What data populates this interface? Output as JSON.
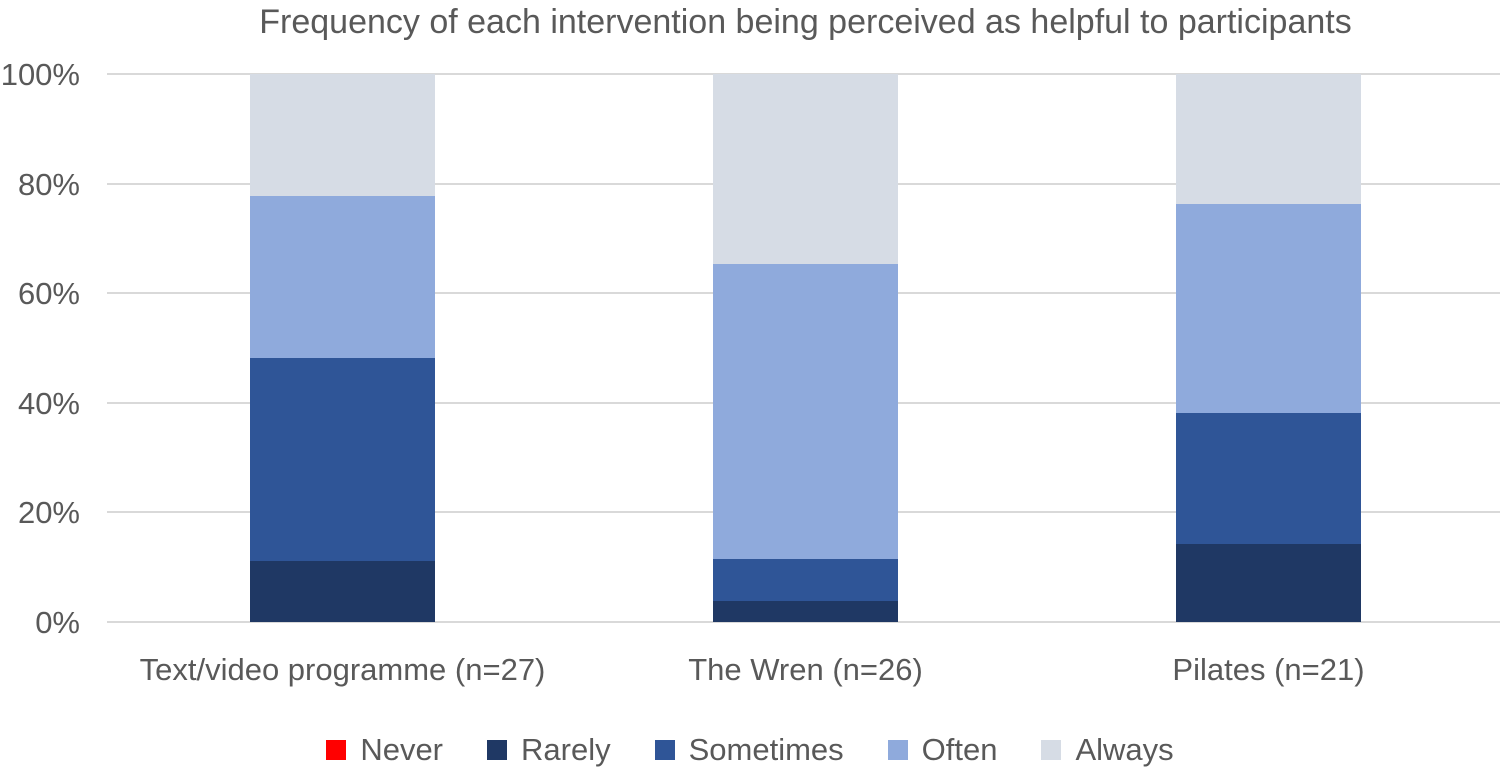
{
  "chart_data": {
    "type": "bar",
    "stacked": true,
    "percent_stacked": true,
    "title": "Frequency of each intervention being perceived as helpful to participants",
    "categories": [
      "Text/video programme (n=27)",
      "The Wren (n=26)",
      "Pilates (n=21)"
    ],
    "series": [
      {
        "name": "Never",
        "color": "#FF0000",
        "values": [
          0,
          0,
          0
        ]
      },
      {
        "name": "Rarely",
        "color": "#1F3864",
        "values": [
          11.1,
          3.8,
          14.3
        ]
      },
      {
        "name": "Sometimes",
        "color": "#2F5597",
        "values": [
          37.0,
          7.7,
          23.8
        ]
      },
      {
        "name": "Often",
        "color": "#8FAADC",
        "values": [
          29.6,
          53.8,
          38.1
        ]
      },
      {
        "name": "Always",
        "color": "#D6DCE5",
        "values": [
          22.2,
          34.6,
          23.8
        ]
      }
    ],
    "xlabel": "",
    "ylabel": "",
    "ylim": [
      0,
      100
    ],
    "y_tick_labels": [
      "0%",
      "20%",
      "40%",
      "60%",
      "80%",
      "100%"
    ],
    "grid": true,
    "legend_position": "bottom",
    "text_color": "#595959",
    "gridline_color": "#D9D9D9",
    "background_color": "#FFFFFF"
  }
}
